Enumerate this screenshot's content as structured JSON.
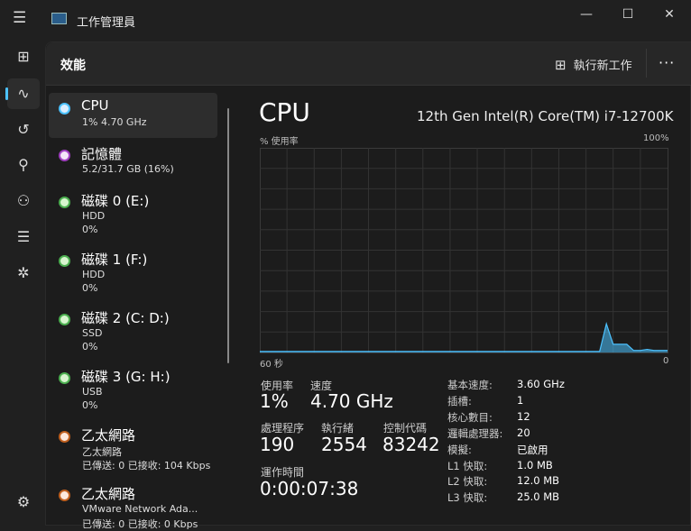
{
  "window": {
    "title": "工作管理員",
    "minimize": "—",
    "maximize": "☐",
    "close": "✕"
  },
  "nav": {
    "menu_icon": "☰",
    "items": [
      {
        "name": "processes",
        "glyph": "⊞"
      },
      {
        "name": "performance",
        "glyph": "∿"
      },
      {
        "name": "app-history",
        "glyph": "↺"
      },
      {
        "name": "startup",
        "glyph": "⚲"
      },
      {
        "name": "users",
        "glyph": "⚇"
      },
      {
        "name": "details",
        "glyph": "☰"
      },
      {
        "name": "services",
        "glyph": "✲"
      }
    ],
    "settings_glyph": "⚙"
  },
  "header": {
    "title": "效能",
    "run_new_task": "執行新工作",
    "more": "···"
  },
  "resources": [
    {
      "name": "CPU",
      "line1": "1% 4.70 GHz",
      "line2": "",
      "color": "#4cc2ff",
      "fill": "#dbeeff"
    },
    {
      "name": "記憶體",
      "line1": "5.2/31.7 GB (16%)",
      "line2": "",
      "color": "#a040c0",
      "fill": "#f3e6f8"
    },
    {
      "name": "磁碟 0 (E:)",
      "line1": "HDD",
      "line2": "0%",
      "color": "#4caf50",
      "fill": "#d8f5cf"
    },
    {
      "name": "磁碟 1 (F:)",
      "line1": "HDD",
      "line2": "0%",
      "color": "#4caf50",
      "fill": "#d8f5cf"
    },
    {
      "name": "磁碟 2 (C: D:)",
      "line1": "SSD",
      "line2": "0%",
      "color": "#4caf50",
      "fill": "#d8f5cf"
    },
    {
      "name": "磁碟 3 (G: H:)",
      "line1": "USB",
      "line2": "0%",
      "color": "#4caf50",
      "fill": "#d8f5cf"
    },
    {
      "name": "乙太網路",
      "line1": "乙太網路",
      "line2": "已傳送: 0 已接收: 104 Kbps",
      "color": "#c0601f",
      "fill": "#fde8dc"
    },
    {
      "name": "乙太網路",
      "line1": "VMware Network Ada...",
      "line2": "已傳送: 0 已接收: 0 Kbps",
      "color": "#c0601f",
      "fill": "#fde8dc"
    }
  ],
  "cpu": {
    "title": "CPU",
    "model": "12th Gen Intel(R) Core(TM) i7-12700K",
    "stats": {
      "usage_label": "使用率",
      "usage": "1%",
      "speed_label": "速度",
      "speed": "4.70 GHz",
      "processes_label": "處理程序",
      "processes": "190",
      "threads_label": "執行緒",
      "threads": "2554",
      "handles_label": "控制代碼",
      "handles": "83242",
      "uptime_label": "運作時間",
      "uptime": "0:00:07:38"
    },
    "specs": [
      [
        "基本速度:",
        "3.60 GHz"
      ],
      [
        "插槽:",
        "1"
      ],
      [
        "核心數目:",
        "12"
      ],
      [
        "邏輯處理器:",
        "20"
      ],
      [
        "模擬:",
        "已啟用"
      ],
      [
        "L1 快取:",
        "1.0 MB"
      ],
      [
        "L2 快取:",
        "12.0 MB"
      ],
      [
        "L3 快取:",
        "25.0 MB"
      ]
    ]
  },
  "chart_data": {
    "type": "area",
    "ylabel": "% 使用率",
    "ymax_label": "100%",
    "xleft_label": "60 秒",
    "xright_label": "0",
    "ylim": [
      0,
      100
    ],
    "xlim": [
      60,
      0
    ],
    "grid": true,
    "color": "#4cc2ff",
    "x": [
      60,
      59,
      58,
      57,
      56,
      55,
      54,
      53,
      52,
      51,
      50,
      49,
      48,
      47,
      46,
      45,
      44,
      43,
      42,
      41,
      40,
      39,
      38,
      37,
      36,
      35,
      34,
      33,
      32,
      31,
      30,
      29,
      28,
      27,
      26,
      25,
      24,
      23,
      22,
      21,
      20,
      19,
      18,
      17,
      16,
      15,
      14,
      13,
      12,
      11,
      10,
      9,
      8,
      7,
      6,
      5,
      4,
      3,
      2,
      1,
      0
    ],
    "values": [
      0.5,
      0.5,
      0.5,
      0.5,
      0.5,
      0.5,
      0.5,
      0.5,
      0.5,
      0.5,
      0.5,
      0.5,
      0.5,
      0.5,
      0.5,
      0.5,
      0.5,
      0.5,
      0.5,
      0.5,
      0.5,
      0.5,
      0.5,
      0.5,
      0.5,
      0.5,
      0.5,
      0.5,
      0.5,
      0.5,
      0.5,
      0.5,
      0.5,
      0.5,
      0.5,
      0.5,
      0.5,
      0.5,
      0.5,
      0.5,
      0.5,
      0.5,
      0.5,
      0.5,
      0.5,
      0.5,
      0.5,
      0.5,
      0.5,
      0.5,
      0.5,
      14,
      4,
      4,
      4,
      1,
      1,
      1.5,
      1,
      1,
      1
    ]
  }
}
